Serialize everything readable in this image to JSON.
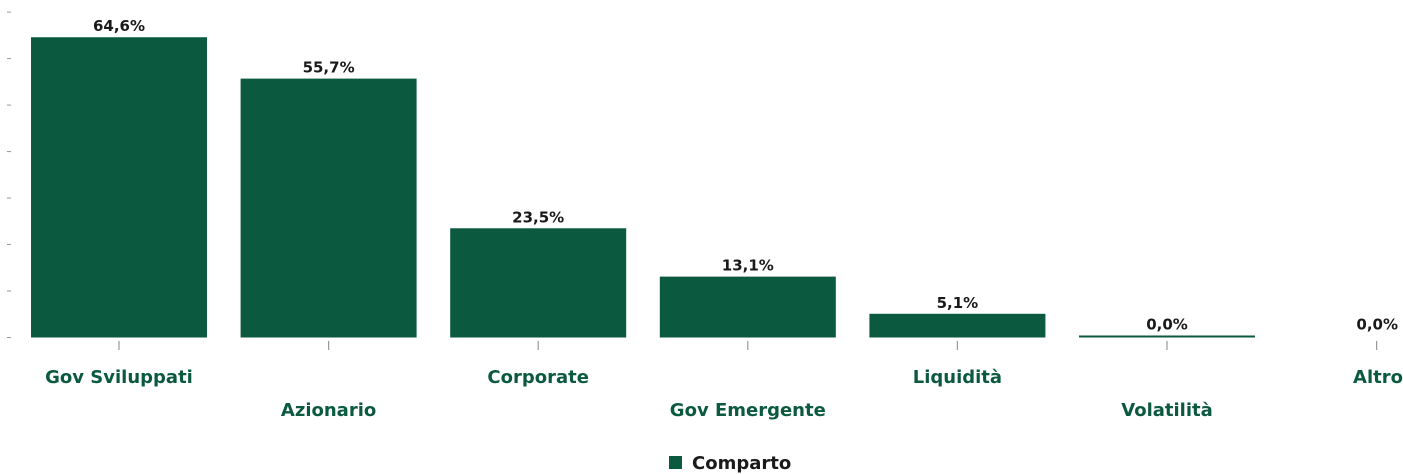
{
  "chart_data": {
    "type": "bar",
    "title": "",
    "xlabel": "",
    "ylabel": "",
    "categories": [
      "Gov Sviluppati",
      "Azionario",
      "Corporate",
      "Gov Emergente",
      "Liquidità",
      "Volatilità",
      "Altro"
    ],
    "series": [
      {
        "name": "Comparto",
        "values": [
          64.6,
          55.7,
          23.5,
          13.1,
          5.1,
          0.0,
          0.0
        ],
        "labels": [
          "64,6%",
          "55,7%",
          "23,5%",
          "13,1%",
          "5,1%",
          "0,0%",
          "0,0%"
        ]
      }
    ],
    "ylim": [
      0,
      70
    ],
    "yticks": [
      0,
      10,
      20,
      30,
      40,
      50,
      60,
      70
    ],
    "grid": false,
    "legend_position": "bottom-center",
    "colors": {
      "bar": "#0b5a40",
      "category_text": "#0b5a40",
      "value_text": "#1a1a1a",
      "axis": "#999999"
    }
  }
}
